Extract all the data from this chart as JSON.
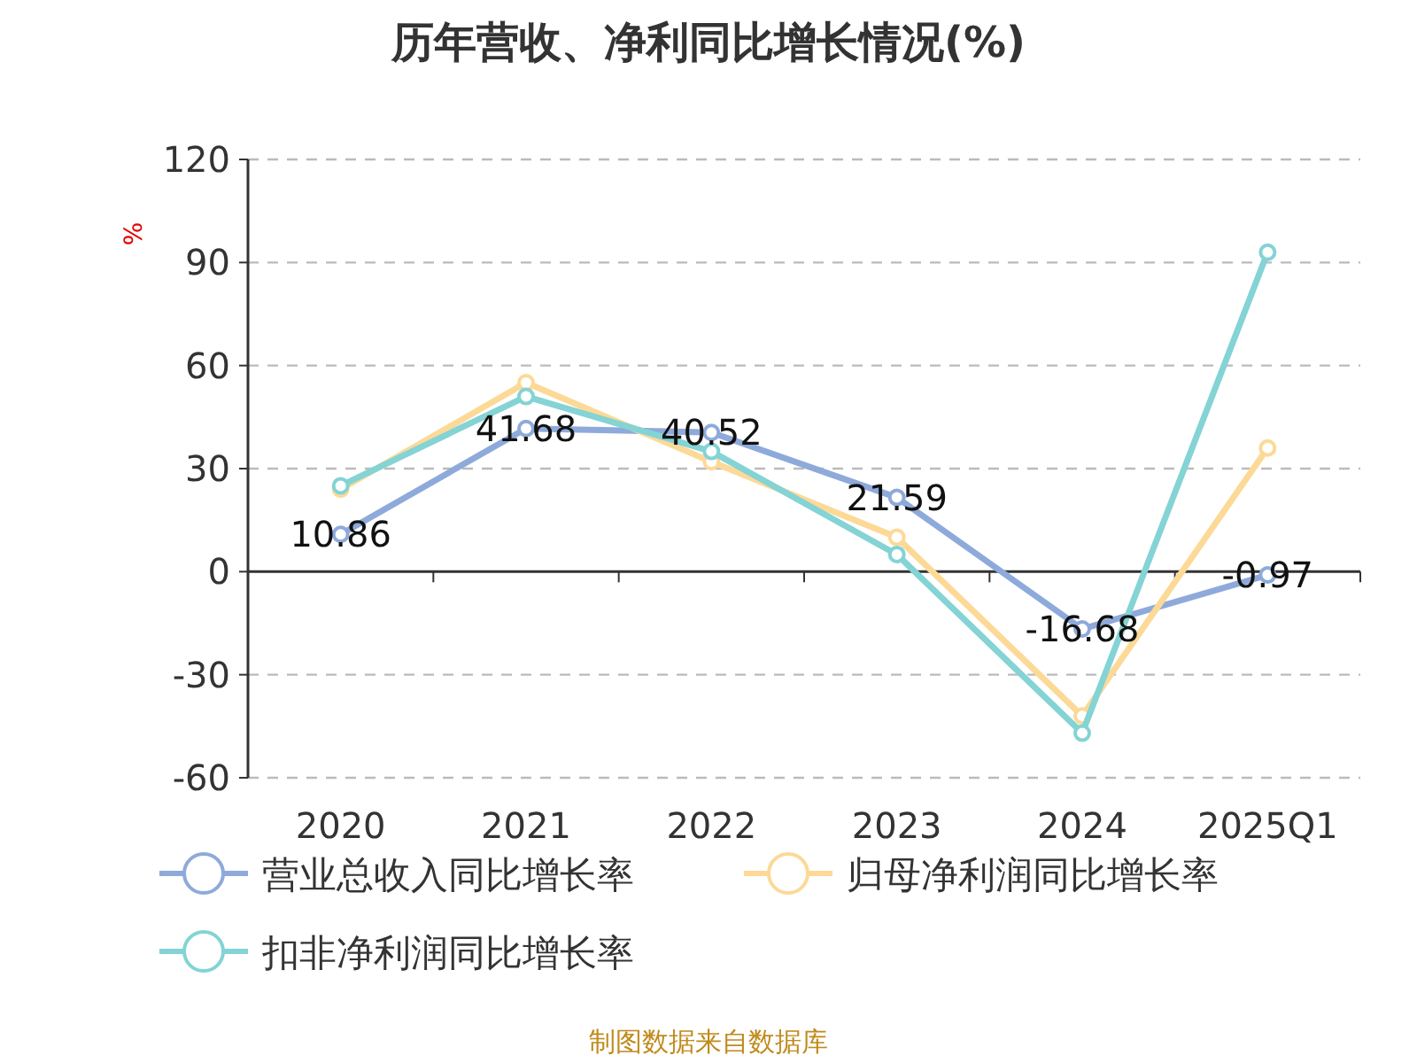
{
  "chart_data": {
    "type": "line",
    "title": "历年营收、净利同比增长情况(%)",
    "ylabel": "%",
    "categories": [
      "2020",
      "2021",
      "2022",
      "2023",
      "2024",
      "2025Q1"
    ],
    "series": [
      {
        "name": "营业总收入同比增长率",
        "color": "#8eaadb",
        "values": [
          10.86,
          41.68,
          40.52,
          21.59,
          -16.68,
          -0.97
        ],
        "value_labels": [
          "10.86",
          "41.68",
          "40.52",
          "21.59",
          "-16.68",
          "-0.97"
        ]
      },
      {
        "name": "归母净利润同比增长率",
        "color": "#fdd997",
        "values": [
          24,
          55,
          32,
          10,
          -42,
          36
        ]
      },
      {
        "name": "扣非净利润同比增长率",
        "color": "#84d3d5",
        "values": [
          25,
          51,
          35,
          5,
          -47,
          93
        ]
      }
    ],
    "ylim": [
      -60,
      120
    ],
    "yticks": [
      -60,
      -30,
      0,
      30,
      60,
      90,
      120
    ],
    "grid": "y",
    "legend": "bottom",
    "marker": "circle",
    "annotations": [
      "制图数据来自数据库"
    ]
  }
}
